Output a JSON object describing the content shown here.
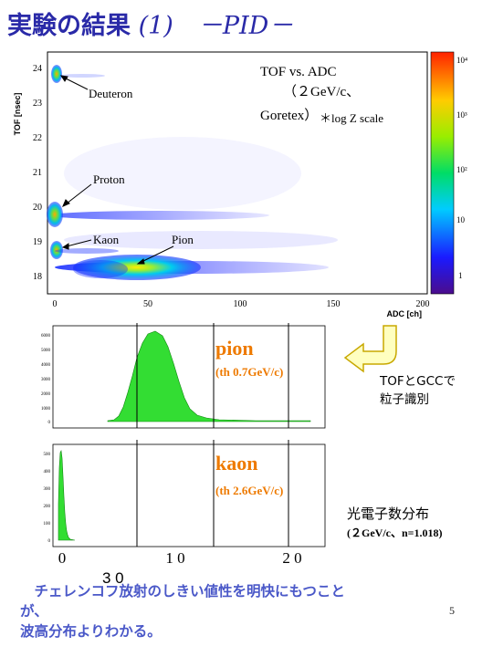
{
  "title": {
    "main": "実験の結果",
    "num": " (1)",
    "sub": "　－PID－"
  },
  "page_number": "5",
  "scatter_plot": {
    "y_axis_label": "TOF [nsec]",
    "x_axis_label": "ADC [ch]",
    "y_ticks": [
      "24",
      "23",
      "22",
      "21",
      "20",
      "19",
      "18"
    ],
    "x_ticks": [
      "0",
      "50",
      "100",
      "150",
      "200"
    ],
    "color_scale_ticks": [
      "10⁴",
      "10³",
      "10²",
      "10",
      "1"
    ],
    "annotation_lines": [
      "TOF vs. ADC",
      "（２GeV/c、",
      "Goretex）",
      "＊log Z scale"
    ],
    "particle_labels": [
      "Deuteron",
      "Proton",
      "Kaon",
      "Pion"
    ]
  },
  "pion_hist": {
    "label": "pion",
    "threshold": "(th 0.7GeV/c)",
    "y_ticks": [
      "6000",
      "5000",
      "4000",
      "3000",
      "2000",
      "1000",
      "0"
    ]
  },
  "kaon_hist": {
    "label": "kaon",
    "threshold": "(th 2.6GeV/c)",
    "y_ticks": [
      "500",
      "400",
      "300",
      "200",
      "100",
      "0"
    ]
  },
  "shared_x_ticks": [
    "0",
    "1 0",
    "2 0",
    "3 0"
  ],
  "arrow_note": [
    "TOFとGCCで",
    "粒子識別"
  ],
  "photoelectron_note": {
    "line1": "光電子数分布",
    "line2": "(２GeV/c、n=1.018)"
  },
  "conclusion": {
    "line1": "　チェレンコフ放射のしきい値性を明快にもつこと",
    "line2": "が、",
    "line3": "波高分布よりわかる。"
  },
  "colors": {
    "title": "#2a2aa8",
    "accent_orange": "#ee7a00",
    "hist_fill": "#33dd33",
    "conclusion_text": "#4a58c8",
    "arrow_fill": "#ffffc0"
  }
}
